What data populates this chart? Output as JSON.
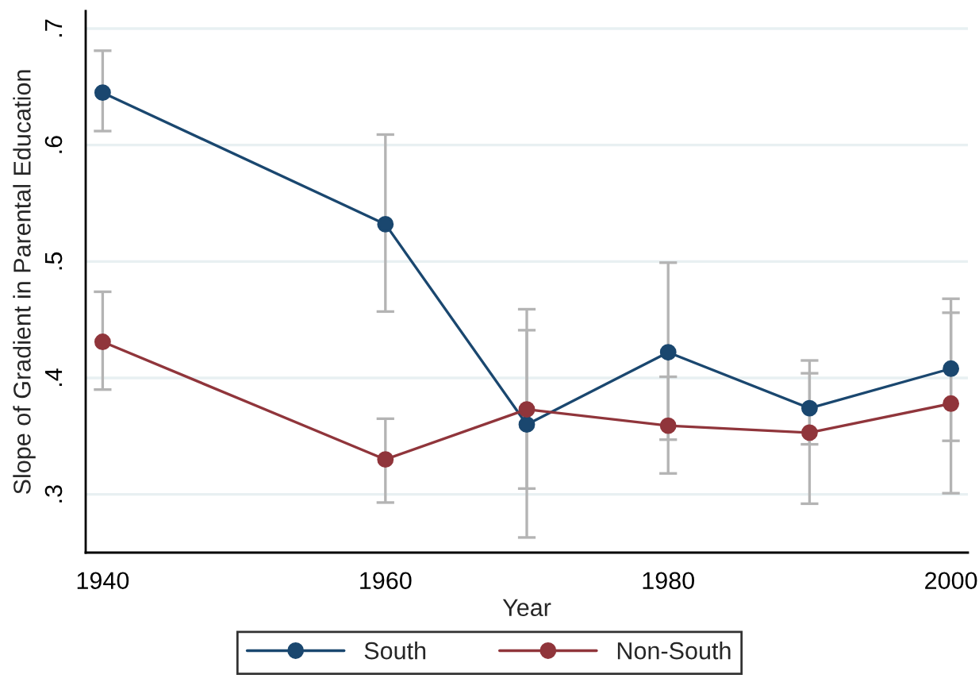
{
  "chart_data": {
    "type": "line",
    "xlabel": "Year",
    "ylabel": "Slope of Gradient in Parental Education",
    "x": [
      1940,
      1960,
      1970,
      1980,
      1990,
      2000
    ],
    "series": [
      {
        "name": "South",
        "color": "#1a476f",
        "values": [
          0.645,
          0.532,
          0.36,
          0.422,
          0.374,
          0.408
        ],
        "errors": [
          [
            0.612,
            0.681
          ],
          [
            0.457,
            0.609
          ],
          [
            0.263,
            0.459
          ],
          [
            0.347,
            0.499
          ],
          [
            0.343,
            0.404
          ],
          [
            0.346,
            0.468
          ]
        ]
      },
      {
        "name": "Non-South",
        "color": "#90353b",
        "values": [
          0.431,
          0.33,
          0.373,
          0.359,
          0.353,
          0.378
        ],
        "errors": [
          [
            0.39,
            0.474
          ],
          [
            0.293,
            0.365
          ],
          [
            0.305,
            0.441
          ],
          [
            0.318,
            0.401
          ],
          [
            0.292,
            0.415
          ],
          [
            0.301,
            0.456
          ]
        ]
      }
    ],
    "xlim": [
      1938.8,
      2001.2
    ],
    "xticks": [
      1940,
      1960,
      1980,
      2000
    ],
    "ylim": [
      0.25,
      0.715
    ],
    "yticks": [
      {
        "value": 0.3,
        "label": ".3"
      },
      {
        "value": 0.4,
        "label": ".4"
      },
      {
        "value": 0.5,
        "label": ".5"
      },
      {
        "value": 0.6,
        "label": ".6"
      },
      {
        "value": 0.7,
        "label": ".7"
      }
    ],
    "grid": "y",
    "legend": "bottom",
    "marker": "circle",
    "line_style": "solid"
  }
}
